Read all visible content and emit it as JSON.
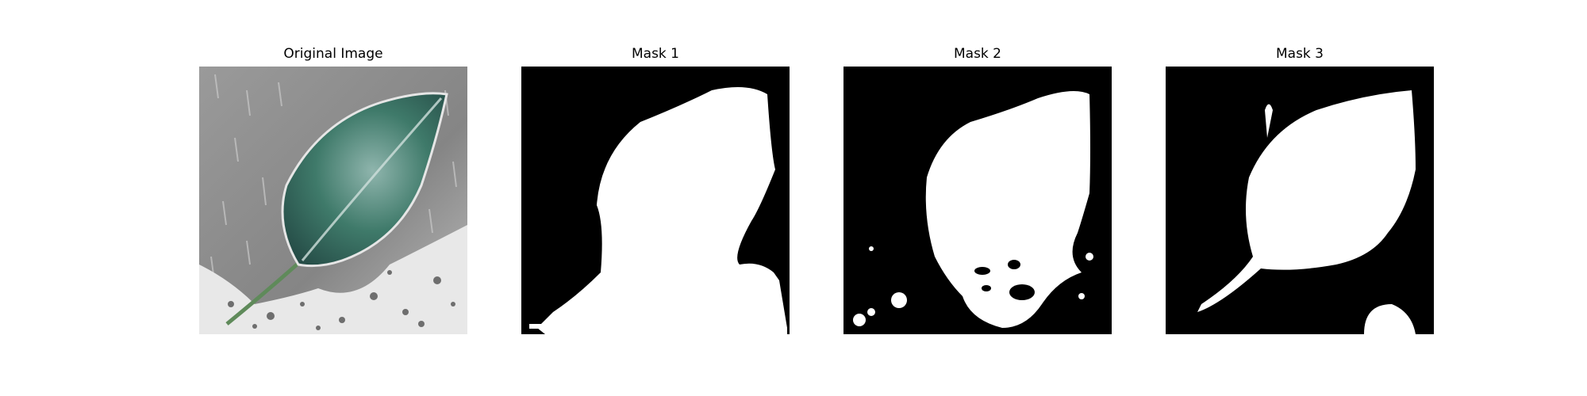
{
  "panels": [
    {
      "title": "Original Image",
      "kind": "image"
    },
    {
      "title": "Mask 1",
      "kind": "mask"
    },
    {
      "title": "Mask 2",
      "kind": "mask"
    },
    {
      "title": "Mask 3",
      "kind": "mask"
    }
  ],
  "colors": {
    "background": "#ffffff",
    "mask_background": "#000000",
    "mask_foreground": "#ffffff",
    "photo_gray": "#8a8a8a",
    "leaf_green": "#3f7a6a"
  }
}
